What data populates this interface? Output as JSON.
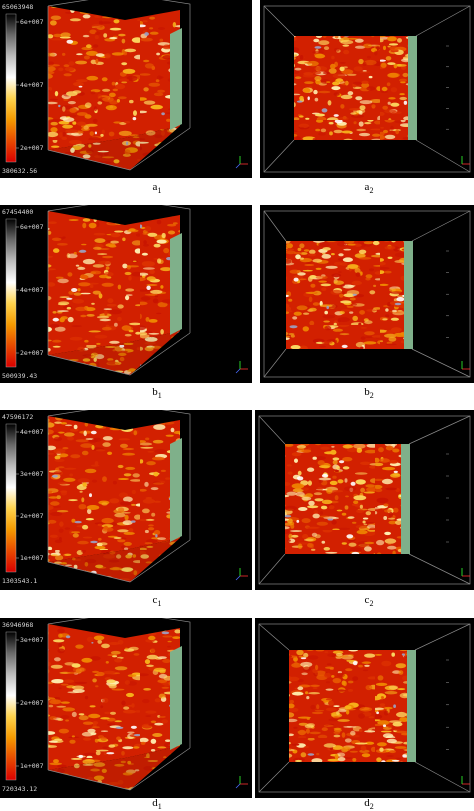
{
  "figure": {
    "rows": [
      {
        "id": "a",
        "colorbar": {
          "max_label": "65063948",
          "ticks": [
            "6e+007",
            "4e+007",
            "2e+007"
          ],
          "min_label": "380632.56"
        },
        "caption_left": {
          "letter": "a",
          "sub": "1"
        },
        "caption_right": {
          "letter": "a",
          "sub": "2"
        }
      },
      {
        "id": "b",
        "colorbar": {
          "max_label": "67454400",
          "ticks": [
            "6e+007",
            "4e+007",
            "2e+007"
          ],
          "min_label": "500939.43"
        },
        "caption_left": {
          "letter": "b",
          "sub": "1"
        },
        "caption_right": {
          "letter": "b",
          "sub": "2"
        }
      },
      {
        "id": "c",
        "colorbar": {
          "max_label": "47596172",
          "ticks": [
            "4e+007",
            "3e+007",
            "2e+007",
            "1e+007"
          ],
          "min_label": "1303543.1"
        },
        "caption_left": {
          "letter": "c",
          "sub": "1"
        },
        "caption_right": {
          "letter": "c",
          "sub": "2"
        }
      },
      {
        "id": "d",
        "colorbar": {
          "max_label": "36946968",
          "ticks": [
            "3e+007",
            "2e+007",
            "1e+007"
          ],
          "min_label": "720343.12"
        },
        "caption_left": {
          "letter": "d",
          "sub": "1"
        },
        "caption_right": {
          "letter": "d",
          "sub": "2"
        }
      }
    ],
    "colors": {
      "panel_background": "#000000",
      "cube_outline": "#8a8a8a",
      "side_wall": "#7fb08a",
      "colormap": [
        "#d90000",
        "#e84a00",
        "#f59a00",
        "#ffd34d",
        "#ffffff",
        "#bdbdbd",
        "#6a6a6a",
        "#000000"
      ]
    }
  }
}
